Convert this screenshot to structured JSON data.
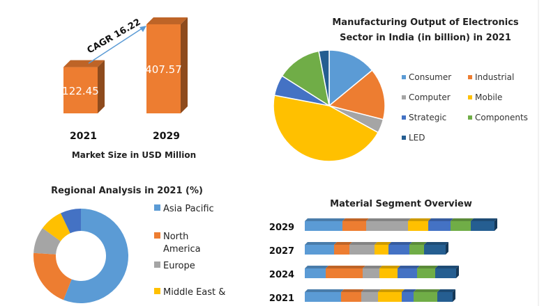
{
  "chart_data": [
    {
      "type": "bar",
      "title": "",
      "xlabel": "Market Size in USD Million",
      "categories": [
        "2021",
        "2029"
      ],
      "values": [
        122.45,
        407.57
      ],
      "data_labels": [
        "122.45",
        "407.57"
      ],
      "annotation": "CAGR 16.22",
      "color": "#ED7D31",
      "style": "3d"
    },
    {
      "type": "pie",
      "title": "Manufacturing Output of Electronics Sector in India (in billion) in 2021",
      "title_lines": [
        "Manufacturing Output of Electronics",
        "Sector in India (in billion) in 2021"
      ],
      "legend_position": "right",
      "labels": [
        "Consumer",
        "Industrial",
        "Computer",
        "Mobile",
        "Strategic",
        "Components",
        "LED"
      ],
      "values": [
        14,
        15,
        4,
        45,
        6,
        13,
        3
      ],
      "colors": [
        "#5B9BD5",
        "#ED7D31",
        "#A5A5A5",
        "#FFC000",
        "#4472C4",
        "#70AD47",
        "#255E91"
      ]
    },
    {
      "type": "pie",
      "donut": true,
      "title": "Regional Analysis in 2021 (%)",
      "legend_position": "right",
      "labels": [
        "Asia Pacific",
        "North America",
        "Europe",
        "Middle East &",
        ""
      ],
      "legend_lines": [
        [
          "Asia Pacific"
        ],
        [
          "North",
          "America"
        ],
        [
          "Europe"
        ],
        [
          "Middle East &"
        ]
      ],
      "values": [
        56,
        20,
        9,
        8,
        7
      ],
      "colors": [
        "#5B9BD5",
        "#ED7D31",
        "#A5A5A5",
        "#FFC000",
        "#4472C4"
      ]
    },
    {
      "type": "bar",
      "orientation": "horizontal",
      "stacked": true,
      "style": "3d",
      "title": "Material Segment Overview",
      "categories": [
        "2029",
        "2027",
        "2024",
        "2021"
      ],
      "series": [
        {
          "values": [
            54,
            42,
            30,
            52
          ],
          "color": "#5B9BD5"
        },
        {
          "values": [
            34,
            22,
            53,
            29
          ],
          "color": "#ED7D31"
        },
        {
          "values": [
            60,
            36,
            24,
            24
          ],
          "color": "#A5A5A5"
        },
        {
          "values": [
            29,
            20,
            26,
            34
          ],
          "color": "#FFC000"
        },
        {
          "values": [
            32,
            30,
            28,
            17
          ],
          "color": "#4472C4"
        },
        {
          "values": [
            29,
            21,
            26,
            34
          ],
          "color": "#70AD47"
        },
        {
          "values": [
            34,
            31,
            30,
            22
          ],
          "color": "#255E91"
        }
      ]
    }
  ]
}
